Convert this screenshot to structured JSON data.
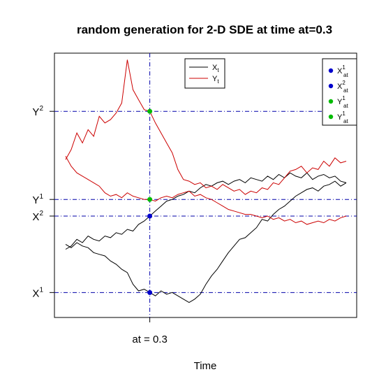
{
  "chart_data": {
    "type": "line",
    "title": "random generation for 2-D SDE at time at=0.3",
    "xlabel": "Time",
    "ylabel": "",
    "xlim": [
      0,
      1
    ],
    "time_marker": {
      "value": 0.3,
      "label": "at = 0.3"
    },
    "y_ticks": [
      {
        "base": "Y",
        "sup": "2",
        "value": 9.05
      },
      {
        "base": "Y",
        "sup": "1",
        "value": 6.4
      },
      {
        "base": "X",
        "sup": "2",
        "value": 5.9
      },
      {
        "base": "X",
        "sup": "1",
        "value": 3.6
      }
    ],
    "ylim": [
      2.85,
      10.8
    ],
    "series": [
      {
        "id": "X1",
        "color": "#000000",
        "x": [
          0.0,
          0.02,
          0.04,
          0.06,
          0.08,
          0.1,
          0.12,
          0.14,
          0.16,
          0.18,
          0.2,
          0.22,
          0.24,
          0.26,
          0.28,
          0.3,
          0.32,
          0.34,
          0.36,
          0.38,
          0.4,
          0.42,
          0.44,
          0.46,
          0.48,
          0.5,
          0.52,
          0.54,
          0.56,
          0.58,
          0.6,
          0.62,
          0.64,
          0.66,
          0.68,
          0.7,
          0.72,
          0.74,
          0.76,
          0.78,
          0.8,
          0.82,
          0.84,
          0.86,
          0.88,
          0.9,
          0.92,
          0.94,
          0.96,
          0.98,
          1.0
        ],
        "y": [
          5.05,
          4.95,
          5.1,
          5.0,
          4.95,
          4.8,
          4.75,
          4.7,
          4.55,
          4.45,
          4.3,
          4.2,
          3.85,
          3.65,
          3.7,
          3.6,
          3.5,
          3.65,
          3.55,
          3.6,
          3.5,
          3.4,
          3.3,
          3.4,
          3.55,
          3.85,
          4.1,
          4.3,
          4.55,
          4.8,
          5.0,
          5.2,
          5.25,
          5.4,
          5.55,
          5.8,
          5.75,
          5.95,
          6.1,
          6.2,
          6.35,
          6.5,
          6.6,
          6.7,
          6.75,
          6.65,
          6.8,
          6.85,
          6.95,
          6.8,
          6.9
        ]
      },
      {
        "id": "X2",
        "color": "#000000",
        "x": [
          0.0,
          0.02,
          0.04,
          0.06,
          0.08,
          0.1,
          0.12,
          0.14,
          0.16,
          0.18,
          0.2,
          0.22,
          0.24,
          0.26,
          0.28,
          0.3,
          0.32,
          0.34,
          0.36,
          0.38,
          0.4,
          0.42,
          0.44,
          0.46,
          0.48,
          0.5,
          0.52,
          0.54,
          0.56,
          0.58,
          0.6,
          0.62,
          0.64,
          0.66,
          0.68,
          0.7,
          0.72,
          0.74,
          0.76,
          0.78,
          0.8,
          0.82,
          0.84,
          0.86,
          0.88,
          0.9,
          0.92,
          0.94,
          0.96,
          0.98,
          1.0
        ],
        "y": [
          4.9,
          5.0,
          5.2,
          5.1,
          5.3,
          5.2,
          5.15,
          5.3,
          5.25,
          5.4,
          5.35,
          5.5,
          5.45,
          5.65,
          5.75,
          5.9,
          6.05,
          6.2,
          6.35,
          6.4,
          6.5,
          6.55,
          6.65,
          6.6,
          6.75,
          6.85,
          6.8,
          6.9,
          6.95,
          6.85,
          6.95,
          7.0,
          6.9,
          7.05,
          7.0,
          6.95,
          7.1,
          7.0,
          7.15,
          7.05,
          7.2,
          7.1,
          7.05,
          7.2,
          7.0,
          7.1,
          7.15,
          7.05,
          7.1,
          6.95,
          6.9
        ]
      },
      {
        "id": "Y1",
        "color": "#cc0000",
        "x": [
          0.0,
          0.02,
          0.04,
          0.06,
          0.08,
          0.1,
          0.12,
          0.14,
          0.16,
          0.18,
          0.2,
          0.22,
          0.24,
          0.26,
          0.28,
          0.3,
          0.32,
          0.34,
          0.36,
          0.38,
          0.4,
          0.42,
          0.44,
          0.46,
          0.48,
          0.5,
          0.52,
          0.54,
          0.56,
          0.58,
          0.6,
          0.62,
          0.64,
          0.66,
          0.68,
          0.7,
          0.72,
          0.74,
          0.76,
          0.78,
          0.8,
          0.82,
          0.84,
          0.86,
          0.88,
          0.9,
          0.92,
          0.94,
          0.96,
          0.98,
          1.0
        ],
        "y": [
          7.7,
          7.4,
          7.2,
          7.1,
          7.0,
          6.9,
          6.8,
          6.6,
          6.5,
          6.55,
          6.45,
          6.6,
          6.5,
          6.45,
          6.4,
          6.4,
          6.35,
          6.45,
          6.5,
          6.45,
          6.55,
          6.6,
          6.65,
          6.5,
          6.55,
          6.45,
          6.4,
          6.3,
          6.2,
          6.1,
          6.05,
          6.0,
          5.95,
          5.95,
          5.9,
          5.85,
          5.9,
          5.8,
          5.85,
          5.75,
          5.8,
          5.7,
          5.75,
          5.65,
          5.7,
          5.75,
          5.7,
          5.8,
          5.75,
          5.85,
          5.9
        ]
      },
      {
        "id": "Y2",
        "color": "#cc0000",
        "x": [
          0.0,
          0.02,
          0.04,
          0.06,
          0.08,
          0.1,
          0.12,
          0.14,
          0.16,
          0.18,
          0.2,
          0.22,
          0.24,
          0.26,
          0.28,
          0.3,
          0.32,
          0.34,
          0.36,
          0.38,
          0.4,
          0.42,
          0.44,
          0.46,
          0.48,
          0.5,
          0.52,
          0.54,
          0.56,
          0.58,
          0.6,
          0.62,
          0.64,
          0.66,
          0.68,
          0.7,
          0.72,
          0.74,
          0.76,
          0.78,
          0.8,
          0.82,
          0.84,
          0.86,
          0.88,
          0.9,
          0.92,
          0.94,
          0.96,
          0.98,
          1.0
        ],
        "y": [
          7.6,
          7.9,
          8.4,
          8.1,
          8.5,
          8.3,
          8.9,
          8.7,
          8.8,
          9.0,
          9.3,
          10.6,
          9.7,
          9.4,
          9.1,
          9.05,
          8.7,
          8.4,
          8.1,
          7.8,
          7.3,
          7.0,
          6.95,
          6.85,
          6.9,
          6.75,
          6.8,
          6.7,
          6.85,
          6.75,
          6.65,
          6.7,
          6.55,
          6.65,
          6.6,
          6.75,
          6.7,
          6.9,
          6.85,
          7.05,
          7.25,
          7.3,
          7.4,
          7.2,
          7.35,
          7.3,
          7.55,
          7.4,
          7.65,
          7.5,
          7.55
        ]
      }
    ],
    "points": [
      {
        "id": "X1_at",
        "color": "#0000cc",
        "x": 0.3,
        "y": 3.6
      },
      {
        "id": "X2_at",
        "color": "#0000cc",
        "x": 0.3,
        "y": 5.9
      },
      {
        "id": "Y1_at",
        "color": "#00bb00",
        "x": 0.3,
        "y": 6.4
      },
      {
        "id": "Y2_at",
        "color": "#00bb00",
        "x": 0.3,
        "y": 9.05
      }
    ],
    "guide_color": "#0000aa",
    "legend_lines": {
      "placement": "top-center",
      "items": [
        {
          "base": "X",
          "sub": "t",
          "color": "#000000"
        },
        {
          "base": "Y",
          "sub": "t",
          "color": "#cc0000"
        }
      ]
    },
    "legend_points": {
      "placement": "top-right",
      "items": [
        {
          "base": "X",
          "sup": "1",
          "sub": "at",
          "color": "#0000cc"
        },
        {
          "base": "X",
          "sup": "2",
          "sub": "at",
          "color": "#0000cc"
        },
        {
          "base": "Y",
          "sup": "1",
          "sub": "at",
          "color": "#00bb00"
        },
        {
          "base": "Y",
          "sup": "1",
          "sub": "at",
          "color": "#00bb00"
        }
      ]
    }
  }
}
